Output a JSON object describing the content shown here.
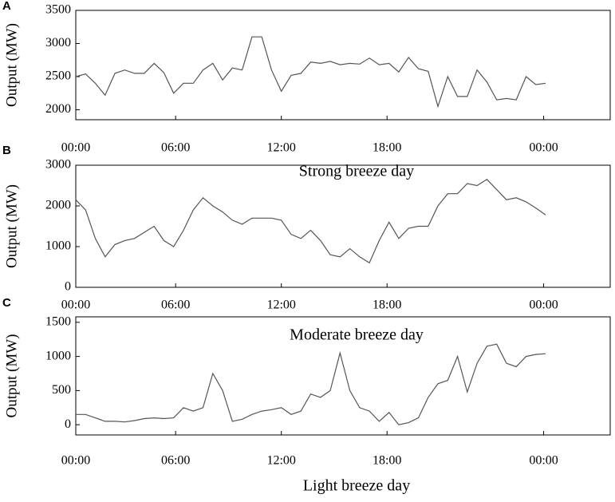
{
  "chart_data": [
    {
      "type": "line",
      "panel_label": "A",
      "x_label": "Strong breeze day",
      "y_label": "Output (MW)",
      "xlim": [
        0,
        27.3
      ],
      "ylim": [
        1850,
        3500
      ],
      "xticks": [
        {
          "value": 0,
          "label": "00:00"
        },
        {
          "value": 5.1,
          "label": "06:00"
        },
        {
          "value": 10.5,
          "label": "12:00"
        },
        {
          "value": 15.9,
          "label": "18:00"
        },
        {
          "value": 23.9,
          "label": "00:00"
        }
      ],
      "yticks": [
        2000,
        2500,
        3000,
        3500
      ],
      "series": [
        {
          "color": "#555555",
          "x": [
            0,
            0.5,
            1,
            1.5,
            2,
            2.5,
            3,
            3.5,
            4,
            4.5,
            5,
            5.5,
            6,
            6.5,
            7,
            7.5,
            8,
            8.5,
            9,
            9.5,
            10,
            10.5,
            11,
            11.5,
            12,
            12.5,
            13,
            13.5,
            14,
            14.5,
            15,
            15.5,
            16,
            16.5,
            17,
            17.5,
            18,
            18.5,
            19,
            19.5,
            20,
            20.5,
            21,
            21.5,
            22,
            22.5,
            23,
            23.5,
            24
          ],
          "values": [
            2500,
            2540,
            2400,
            2220,
            2550,
            2600,
            2550,
            2550,
            2700,
            2560,
            2250,
            2400,
            2400,
            2600,
            2700,
            2450,
            2630,
            2600,
            3100,
            3100,
            2600,
            2280,
            2520,
            2550,
            2720,
            2700,
            2730,
            2680,
            2700,
            2690,
            2780,
            2680,
            2700,
            2570,
            2790,
            2620,
            2580,
            2050,
            2500,
            2200,
            2200,
            2600,
            2420,
            2150,
            2170,
            2150,
            2500,
            2380,
            2400
          ]
        }
      ]
    },
    {
      "type": "line",
      "panel_label": "B",
      "x_label": "Moderate breeze day",
      "y_label": "Output (MW)",
      "xlim": [
        0,
        27.3
      ],
      "ylim": [
        0,
        3000
      ],
      "xticks": [
        {
          "value": 0,
          "label": "00:00"
        },
        {
          "value": 5.1,
          "label": "06:00"
        },
        {
          "value": 10.5,
          "label": "12:00"
        },
        {
          "value": 15.9,
          "label": "18:00"
        },
        {
          "value": 23.9,
          "label": "00:00"
        }
      ],
      "yticks": [
        0,
        1000,
        2000,
        3000
      ],
      "series": [
        {
          "color": "#555555",
          "x": [
            0,
            0.5,
            1,
            1.5,
            2,
            2.5,
            3,
            3.5,
            4,
            4.5,
            5,
            5.5,
            6,
            6.5,
            7,
            7.5,
            8,
            8.5,
            9,
            9.5,
            10,
            10.5,
            11,
            11.5,
            12,
            12.5,
            13,
            13.5,
            14,
            14.5,
            15,
            15.5,
            16,
            16.5,
            17,
            17.5,
            18,
            18.5,
            19,
            19.5,
            20,
            20.5,
            21,
            21.5,
            22,
            22.5,
            23,
            23.5,
            24
          ],
          "values": [
            2150,
            1900,
            1200,
            750,
            1050,
            1150,
            1200,
            1350,
            1500,
            1150,
            1000,
            1400,
            1900,
            2200,
            2000,
            1850,
            1650,
            1550,
            1700,
            1700,
            1700,
            1650,
            1300,
            1200,
            1400,
            1150,
            800,
            750,
            950,
            750,
            600,
            1150,
            1600,
            1200,
            1450,
            1500,
            1500,
            2000,
            2300,
            2300,
            2550,
            2500,
            2650,
            2400,
            2150,
            2200,
            2100,
            1950,
            1780
          ]
        }
      ]
    },
    {
      "type": "line",
      "panel_label": "C",
      "x_label": "Light breeze day",
      "y_label": "Output (MW)",
      "xlim": [
        0,
        27.3
      ],
      "ylim": [
        -150,
        1580
      ],
      "xticks": [
        {
          "value": 0,
          "label": "00:00"
        },
        {
          "value": 5.1,
          "label": "06:00"
        },
        {
          "value": 10.5,
          "label": "12:00"
        },
        {
          "value": 15.9,
          "label": "18:00"
        },
        {
          "value": 23.9,
          "label": "00:00"
        }
      ],
      "yticks": [
        0,
        500,
        1000,
        1500
      ],
      "series": [
        {
          "color": "#555555",
          "x": [
            0,
            0.5,
            1,
            1.5,
            2,
            2.5,
            3,
            3.5,
            4,
            4.5,
            5,
            5.5,
            6,
            6.5,
            7,
            7.5,
            8,
            8.5,
            9,
            9.5,
            10,
            10.5,
            11,
            11.5,
            12,
            12.5,
            13,
            13.5,
            14,
            14.5,
            15,
            15.5,
            16,
            16.5,
            17,
            17.5,
            18,
            18.5,
            19,
            19.5,
            20,
            20.5,
            21,
            21.5,
            22,
            22.5,
            23,
            23.5,
            24
          ],
          "values": [
            150,
            150,
            100,
            50,
            50,
            40,
            60,
            90,
            100,
            90,
            100,
            250,
            200,
            250,
            750,
            500,
            50,
            80,
            150,
            200,
            220,
            250,
            150,
            200,
            450,
            400,
            500,
            1050,
            500,
            250,
            200,
            50,
            180,
            0,
            30,
            100,
            400,
            600,
            650,
            1000,
            480,
            900,
            1150,
            1180,
            900,
            850,
            1000,
            1030,
            1040
          ]
        }
      ]
    }
  ]
}
